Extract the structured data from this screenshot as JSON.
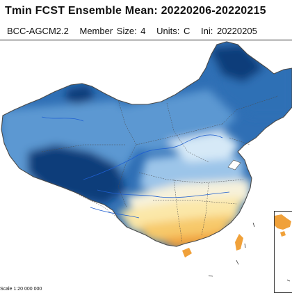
{
  "header": {
    "title": "Tmin FCST Ensemble Mean:  20220206-20220215",
    "model": "BCC-AGCM2.2",
    "member_size": "Member Size: 4",
    "units": "Units: C",
    "init": "Ini: 20220205"
  },
  "map": {
    "scale_text": "Scale 1:20 000 000",
    "colors": {
      "very_cold": "#0d3d7a",
      "cold": "#2f6fb5",
      "cool": "#5c98d2",
      "mild": "#9cc5e9",
      "light": "#d6e9f7",
      "neutral": "#f7f2dc",
      "warm": "#fbe7a8",
      "warmer": "#f7c96a",
      "hot": "#f0a13a",
      "boundary": "#4a4a4a",
      "river": "#1f5fd1"
    }
  }
}
